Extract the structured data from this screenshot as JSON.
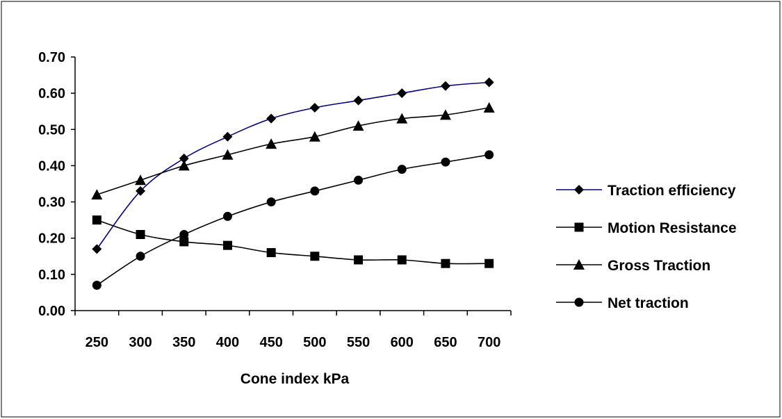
{
  "chart_data": {
    "type": "line",
    "title": "",
    "xlabel": "Cone index  kPa",
    "ylabel": "",
    "categories": [
      "250",
      "300",
      "350",
      "400",
      "450",
      "500",
      "550",
      "600",
      "650",
      "700"
    ],
    "ylim": [
      0,
      0.7
    ],
    "yticks": [
      "0.00",
      "0.10",
      "0.20",
      "0.30",
      "0.40",
      "0.50",
      "0.60",
      "0.70"
    ],
    "grid": false,
    "legend_position": "right",
    "series": [
      {
        "name": "Traction efficiency",
        "marker": "diamond",
        "color": "#000080",
        "values": [
          0.17,
          0.33,
          0.42,
          0.48,
          0.53,
          0.56,
          0.58,
          0.6,
          0.62,
          0.63
        ]
      },
      {
        "name": "Motion Resistance",
        "marker": "square",
        "color": "#000000",
        "values": [
          0.25,
          0.21,
          0.19,
          0.18,
          0.16,
          0.15,
          0.14,
          0.14,
          0.13,
          0.13
        ]
      },
      {
        "name": "Gross Traction",
        "marker": "triangle",
        "color": "#000000",
        "values": [
          0.32,
          0.36,
          0.4,
          0.43,
          0.46,
          0.48,
          0.51,
          0.53,
          0.54,
          0.56
        ]
      },
      {
        "name": "Net traction",
        "marker": "circle",
        "color": "#000000",
        "values": [
          0.07,
          0.15,
          0.21,
          0.26,
          0.3,
          0.33,
          0.36,
          0.39,
          0.41,
          0.43
        ]
      }
    ]
  }
}
